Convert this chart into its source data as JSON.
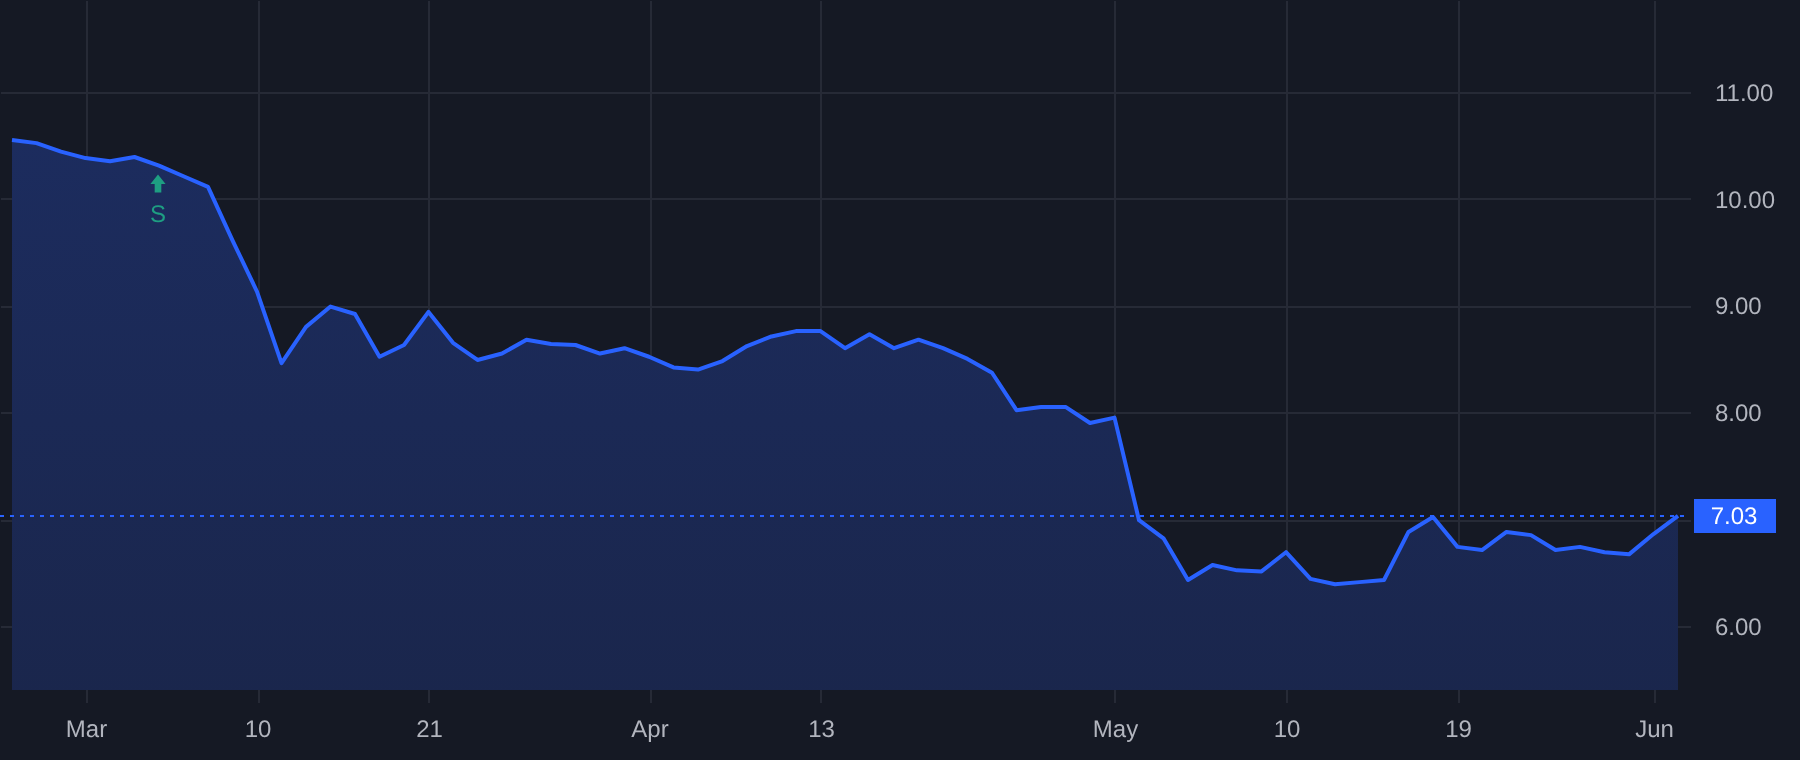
{
  "chart_data": {
    "type": "area",
    "categories": [
      null,
      null,
      null,
      "Mar",
      null,
      null,
      null,
      null,
      null,
      null,
      "10",
      null,
      null,
      null,
      null,
      null,
      null,
      "21",
      null,
      null,
      null,
      null,
      null,
      null,
      null,
      null,
      "Apr",
      null,
      null,
      null,
      null,
      null,
      null,
      "13",
      null,
      null,
      null,
      null,
      null,
      null,
      null,
      null,
      null,
      null,
      null,
      "May",
      null,
      null,
      null,
      null,
      null,
      null,
      "10",
      null,
      null,
      null,
      null,
      null,
      null,
      "19",
      null,
      null,
      null,
      null,
      null,
      null,
      null,
      "Jun",
      null
    ],
    "series": [
      {
        "color": "#2962ff",
        "values": [
          10.55,
          10.52,
          10.44,
          10.38,
          10.35,
          10.39,
          10.31,
          10.21,
          10.11,
          9.61,
          9.13,
          8.46,
          8.8,
          8.99,
          8.92,
          8.52,
          8.63,
          8.94,
          8.65,
          8.49,
          8.55,
          8.68,
          8.64,
          8.63,
          8.55,
          8.6,
          8.52,
          8.42,
          8.4,
          8.48,
          8.62,
          8.71,
          8.76,
          8.76,
          8.6,
          8.73,
          8.6,
          8.68,
          8.6,
          8.5,
          8.37,
          8.02,
          8.05,
          8.05,
          7.9,
          7.95,
          6.99,
          6.82,
          6.43,
          6.57,
          6.52,
          6.51,
          6.69,
          6.44,
          6.39,
          6.41,
          6.43,
          6.88,
          7.02,
          6.74,
          6.71,
          6.88,
          6.85,
          6.71,
          6.74,
          6.69,
          6.67,
          6.86,
          7.03
        ]
      }
    ],
    "ylim": [
      5.4,
      11.86
    ],
    "yticks": [
      {
        "value": 6,
        "label": "6.00"
      },
      {
        "value": 7,
        "label": null
      },
      {
        "value": 8,
        "label": "8.00"
      },
      {
        "value": 9,
        "label": "9.00"
      },
      {
        "value": 10,
        "label": "10.00"
      },
      {
        "value": 11,
        "label": "11.00"
      }
    ],
    "grid": true,
    "ref_lines": [
      {
        "axis": "y",
        "value": 7.03,
        "label": "7.03",
        "color": "#2962ff",
        "line_style": "dotted"
      }
    ],
    "annotations": [
      "S"
    ]
  }
}
